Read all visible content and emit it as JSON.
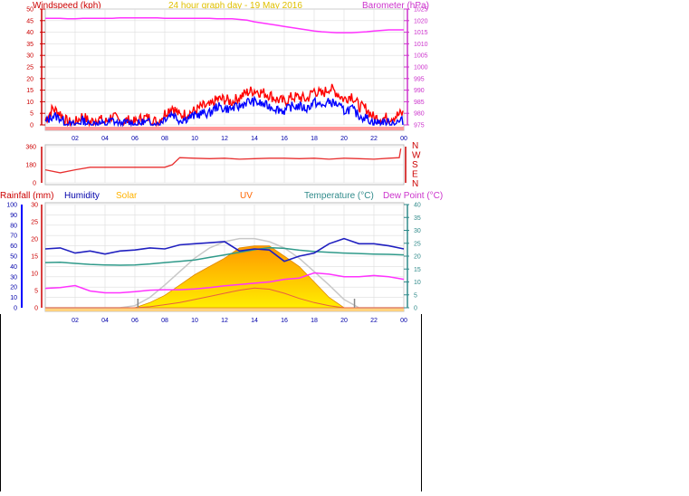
{
  "header": {
    "windspeed_label": "Windspeed (kph)",
    "graph_title": "24 hour graph day - 19 May 2016",
    "barometer_label": "Barometer (hPa)"
  },
  "time_ticks": [
    "02",
    "04",
    "06",
    "08",
    "10",
    "12",
    "14",
    "16",
    "18",
    "20",
    "22",
    "00"
  ],
  "lower_labels": {
    "rainfall": "Rainfall (mm)",
    "humidity": "Humidity",
    "solar": "Solar",
    "uv": "UV",
    "temperature": "Temperature (°C)",
    "dewpoint": "Dew Point (°C)"
  },
  "compass_labels": [
    "N",
    "W",
    "S",
    "E",
    "N"
  ],
  "colors": {
    "wind": "#ff0000",
    "wind_avg": "#0000ff",
    "barometer": "#ff33ff",
    "direction": "#e83030",
    "humidity": "#2020c0",
    "temperature": "#2f9a8a",
    "dewpoint": "#ff33ff",
    "solar": "#ffb300",
    "uv": "#ff6600",
    "rain_axis": "#0000ff",
    "header_title": "#e0c000",
    "grid": "#dddddd"
  },
  "chart_data": [
    {
      "type": "line",
      "panel": "wind-barometer",
      "ylim_left": [
        0,
        50
      ],
      "yticks_left": [
        0,
        5,
        10,
        15,
        20,
        25,
        30,
        35,
        40,
        45,
        50
      ],
      "ylim_right": [
        975,
        1025
      ],
      "yticks_right": [
        975,
        980,
        985,
        990,
        995,
        1000,
        1005,
        1010,
        1015,
        1020,
        1025
      ],
      "x_hours": [
        0,
        0.5,
        1,
        1.5,
        2,
        2.5,
        3,
        3.5,
        4,
        4.5,
        5,
        5.5,
        6,
        6.5,
        7,
        7.5,
        8,
        8.5,
        9,
        9.5,
        10,
        10.5,
        11,
        11.5,
        12,
        12.5,
        13,
        13.5,
        14,
        14.5,
        15,
        15.5,
        16,
        16.5,
        17,
        17.5,
        18,
        18.5,
        19,
        19.5,
        20,
        20.5,
        21,
        21.5,
        22,
        22.5,
        23,
        23.5,
        24
      ],
      "series": [
        {
          "key": "gust",
          "values": [
            2,
            7,
            5,
            1,
            1,
            4,
            1,
            3,
            1,
            4,
            1,
            2,
            1,
            3,
            3,
            1,
            5,
            8,
            4,
            5,
            6,
            8,
            8,
            11,
            11,
            10,
            12,
            14,
            15,
            14,
            13,
            11,
            10,
            12,
            12,
            11,
            15,
            13,
            16,
            14,
            11,
            13,
            8,
            7,
            3,
            3,
            3,
            4,
            5
          ]
        },
        {
          "key": "average",
          "values": [
            1,
            4,
            3,
            0,
            0,
            2,
            0,
            1,
            0,
            2,
            0,
            1,
            0,
            1,
            1,
            0,
            3,
            5,
            2,
            3,
            4,
            5,
            5,
            8,
            7,
            7,
            8,
            10,
            10,
            9,
            8,
            7,
            6,
            8,
            8,
            7,
            10,
            8,
            10,
            9,
            6,
            7,
            4,
            3,
            1,
            1,
            1,
            1,
            2
          ]
        },
        {
          "key": "barometer",
          "values": [
            1021,
            1021,
            1021,
            1020.8,
            1020.8,
            1021,
            1021,
            1021,
            1021,
            1021,
            1021.2,
            1021.2,
            1021.2,
            1021.2,
            1021.2,
            1021.2,
            1021,
            1021,
            1021,
            1021,
            1021,
            1021,
            1021,
            1020.8,
            1020.8,
            1020.8,
            1020.5,
            1020.2,
            1019.5,
            1019,
            1018.5,
            1018,
            1017.5,
            1017,
            1016.5,
            1016,
            1015.5,
            1015.2,
            1015,
            1014.8,
            1014.8,
            1014.8,
            1015,
            1015.2,
            1015.5,
            1015.8,
            1016,
            1016,
            1016
          ]
        }
      ]
    },
    {
      "type": "line",
      "panel": "wind-direction",
      "ylim": [
        0,
        360
      ],
      "yticks": [
        0,
        180,
        360
      ],
      "x_hours": [
        0,
        1,
        2,
        3,
        4,
        5,
        6,
        7,
        8,
        8.5,
        9,
        10,
        11,
        12,
        13,
        14,
        15,
        16,
        17,
        18,
        19,
        20,
        21,
        22,
        23,
        23.7,
        23.8
      ],
      "values": [
        130,
        100,
        130,
        155,
        155,
        155,
        155,
        155,
        155,
        180,
        250,
        245,
        240,
        245,
        235,
        240,
        245,
        245,
        240,
        245,
        235,
        245,
        240,
        235,
        245,
        250,
        340
      ]
    },
    {
      "type": "line",
      "panel": "temperature-humidity-solar",
      "ylim_humidity": [
        0,
        100
      ],
      "yticks_humidity": [
        0,
        10,
        20,
        30,
        40,
        50,
        60,
        70,
        80,
        90,
        100
      ],
      "ylim_rain": [
        0,
        30
      ],
      "yticks_rain": [
        0,
        5,
        10,
        15,
        20,
        25,
        30
      ],
      "ylim_temp": [
        0,
        40
      ],
      "yticks_temp": [
        0,
        5,
        10,
        15,
        20,
        25,
        30,
        35,
        40
      ],
      "x_hours": [
        0,
        1,
        2,
        3,
        4,
        5,
        6,
        7,
        8,
        9,
        10,
        11,
        12,
        13,
        14,
        15,
        16,
        17,
        18,
        19,
        20,
        21,
        22,
        23,
        24
      ],
      "series": [
        {
          "key": "humidity",
          "values": [
            57,
            58,
            53,
            55,
            52,
            55,
            56,
            58,
            57,
            61,
            62,
            63,
            64,
            55,
            57,
            56,
            45,
            50,
            53,
            62,
            67,
            62,
            62,
            60,
            57
          ]
        },
        {
          "key": "temperature",
          "values": [
            17.5,
            17.6,
            17.2,
            16.8,
            16.6,
            16.5,
            16.6,
            17.0,
            17.5,
            18.0,
            18.5,
            19.5,
            20.5,
            21.5,
            22.5,
            23.3,
            23.0,
            22.3,
            21.8,
            21.5,
            21.2,
            21.0,
            20.8,
            20.7,
            20.5
          ]
        },
        {
          "key": "dewpoint",
          "values": [
            7.5,
            7.8,
            8.6,
            6.5,
            5.8,
            5.8,
            6.2,
            6.8,
            7.0,
            7.0,
            7.3,
            7.8,
            8.5,
            9.0,
            9.5,
            10.0,
            11.0,
            11.5,
            13.5,
            13.0,
            12.0,
            12.0,
            12.5,
            12.0,
            11.0
          ]
        },
        {
          "key": "solar",
          "values": [
            0,
            0,
            0,
            0,
            0,
            0,
            0,
            5,
            12,
            22,
            32,
            40,
            48,
            58,
            60,
            60,
            50,
            40,
            25,
            10,
            0,
            0,
            0,
            0,
            0
          ]
        },
        {
          "key": "solar_max",
          "values": [
            0,
            0,
            0,
            0,
            0,
            0,
            2,
            10,
            22,
            35,
            48,
            58,
            64,
            67,
            67,
            64,
            58,
            48,
            35,
            22,
            8,
            0,
            0,
            0,
            0
          ]
        },
        {
          "key": "uv",
          "values": [
            0,
            0,
            0,
            0,
            0,
            0,
            0,
            1,
            3,
            5,
            8,
            11,
            14,
            17,
            19,
            18,
            14,
            9,
            5,
            2,
            0,
            0,
            0,
            0,
            0
          ]
        }
      ]
    }
  ]
}
